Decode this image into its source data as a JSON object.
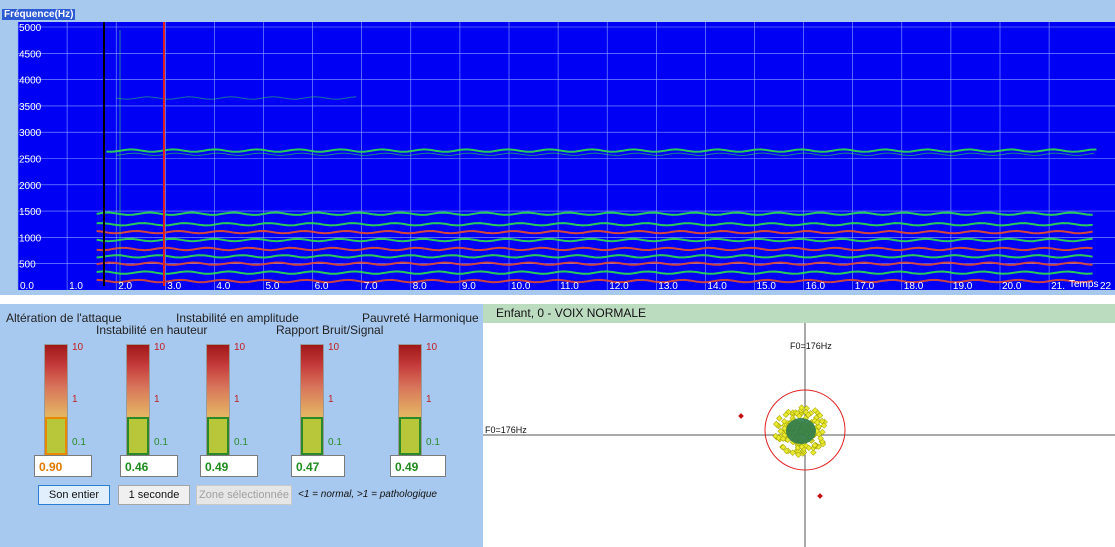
{
  "spectrogram": {
    "title": "Fréquence(Hz)",
    "y_ticks": [
      "5000",
      "4500",
      "4000",
      "3500",
      "3000",
      "2500",
      "2000",
      "1500",
      "1000",
      "500"
    ],
    "x_ticks": [
      "0.0",
      "1.0",
      "2.0",
      "3.0",
      "4.0",
      "5.0",
      "6.0",
      "7.0",
      "8.0",
      "9.0",
      "10.0",
      "11.0",
      "12.0",
      "13.0",
      "14.0",
      "15.0",
      "16.0",
      "17.0",
      "18.0",
      "19.0",
      "20.0",
      "21."
    ],
    "x_label": "Temps",
    "x_label_trailing": "22",
    "colors": {
      "background": "#0000f5",
      "grid": "#8aa6ff",
      "harmonic": "#2ee04a",
      "low_harmonic": "#e04a30",
      "cursor_start": "#000000",
      "cursor_end": "#e02020"
    }
  },
  "indicators": {
    "headers": [
      {
        "label": "Altération de l'attaque"
      },
      {
        "label": "Instabilité en hauteur"
      },
      {
        "label": "Instabilité en amplitude"
      },
      {
        "label": "Rapport Bruit/Signal"
      },
      {
        "label": "Pauvreté Harmonique"
      }
    ],
    "scale": {
      "top": "10",
      "mid": "1",
      "bottom": "0.1"
    },
    "values": [
      {
        "value": "0.90",
        "level": "warning"
      },
      {
        "value": "0.46",
        "level": "normal"
      },
      {
        "value": "0.49",
        "level": "normal"
      },
      {
        "value": "0.47",
        "level": "normal"
      },
      {
        "value": "0.49",
        "level": "normal"
      }
    ],
    "buttons": {
      "full": "Son entier",
      "one_second": "1 seconde",
      "selection": "Zone sélectionnée"
    },
    "legend_note": "<1 = normal, >1 = pathologique"
  },
  "scatter": {
    "header": "Enfant,  0 -  VOIX NORMALE",
    "f0_vertical_label": "F0=176Hz",
    "f0_horizontal_label": "F0=176Hz",
    "colors": {
      "circle": "#e02020",
      "points": "#eaea30",
      "points_edge": "#a0a000",
      "core": "#2e7a4c",
      "outlier": "#c01010"
    }
  }
}
